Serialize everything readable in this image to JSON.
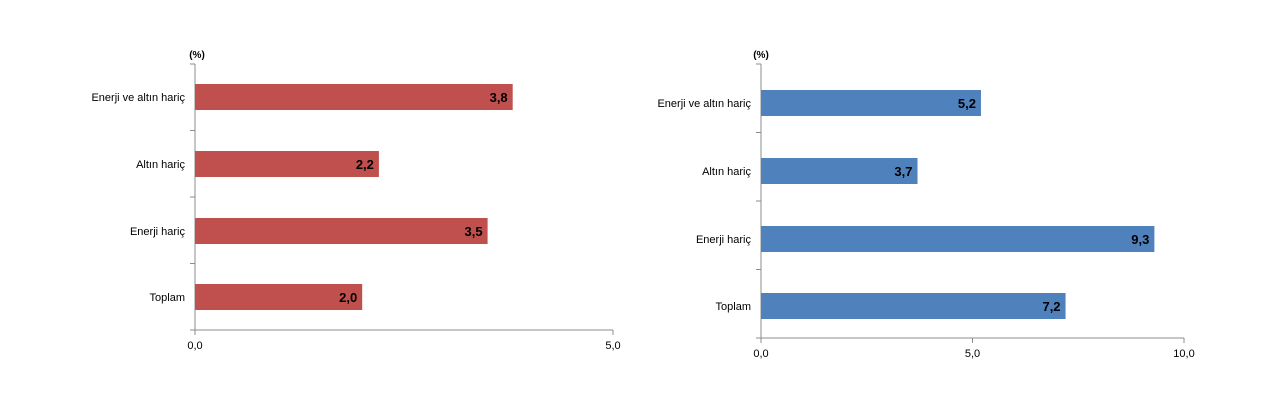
{
  "chart_data": [
    {
      "type": "bar",
      "orientation": "horizontal",
      "unit_label": "(%)",
      "categories": [
        "Enerji ve altın hariç",
        "Altın hariç",
        "Enerji hariç",
        "Toplam"
      ],
      "values": [
        3.8,
        2.2,
        3.5,
        2.0
      ],
      "value_labels": [
        "3,8",
        "2,2",
        "3,5",
        "2,0"
      ],
      "xlim": [
        0,
        5
      ],
      "x_ticks": [
        0,
        5
      ],
      "x_tick_labels": [
        "0,0",
        "5,0"
      ],
      "bar_color": "#c0504d",
      "grid": false
    },
    {
      "type": "bar",
      "orientation": "horizontal",
      "unit_label": "(%)",
      "categories": [
        "Enerji ve altın hariç",
        "Altın hariç",
        "Enerji hariç",
        "Toplam"
      ],
      "values": [
        5.2,
        3.7,
        9.3,
        7.2
      ],
      "value_labels": [
        "5,2",
        "3,7",
        "9,3",
        "7,2"
      ],
      "xlim": [
        0,
        10
      ],
      "x_ticks": [
        0,
        5,
        10
      ],
      "x_tick_labels": [
        "0,0",
        "5,0",
        "10,0"
      ],
      "bar_color": "#4f81bd",
      "grid": false
    }
  ]
}
